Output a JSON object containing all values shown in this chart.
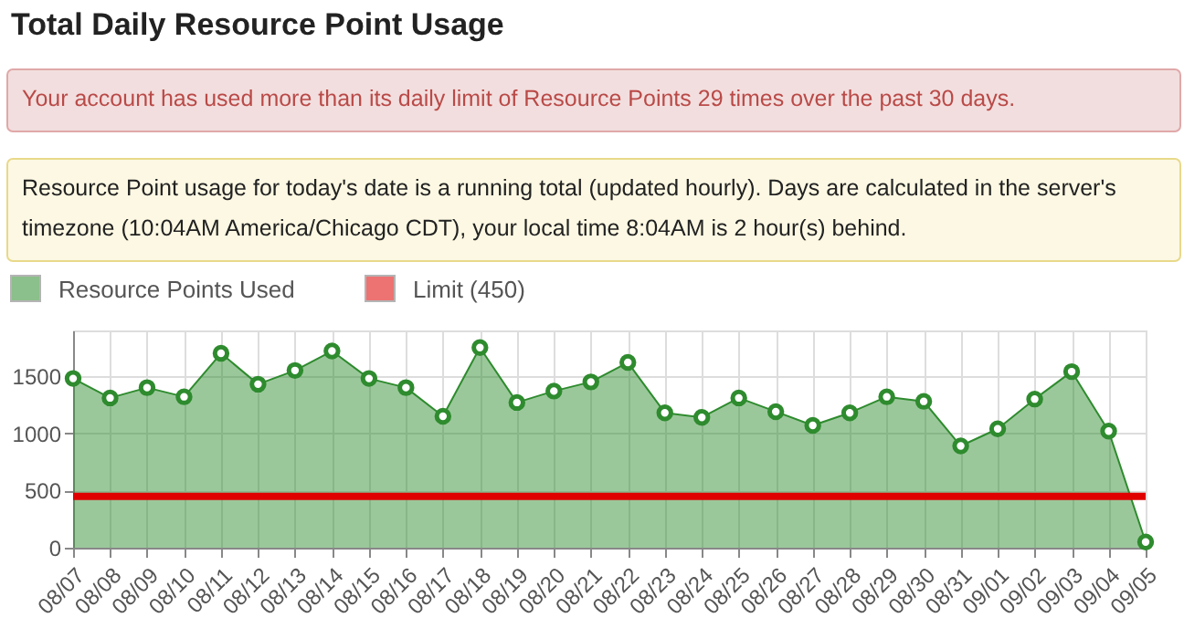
{
  "chart_data": {
    "type": "area",
    "title": "Total Daily Resource Point Usage",
    "annotations": [
      "Your account has used more than its daily limit of Resource Points 29 times over the past 30 days.",
      "Resource Point usage for today's date is a running total (updated hourly). Days are calculated in the server's timezone (10:04AM America/Chicago CDT), your local time 8:04AM is 2 hour(s) behind."
    ],
    "categories": [
      "08/07",
      "08/08",
      "08/09",
      "08/10",
      "08/11",
      "08/12",
      "08/13",
      "08/14",
      "08/15",
      "08/16",
      "08/17",
      "08/18",
      "08/19",
      "08/20",
      "08/21",
      "08/22",
      "08/23",
      "08/24",
      "08/25",
      "08/26",
      "08/27",
      "08/28",
      "08/29",
      "08/30",
      "08/31",
      "09/01",
      "09/02",
      "09/03",
      "09/04",
      "09/05"
    ],
    "series": [
      {
        "name": "Resource Points Used",
        "color": "#2e8b2e",
        "values": [
          1480,
          1310,
          1400,
          1320,
          1700,
          1430,
          1550,
          1720,
          1480,
          1400,
          1150,
          1750,
          1270,
          1370,
          1450,
          1620,
          1180,
          1140,
          1310,
          1190,
          1070,
          1180,
          1320,
          1280,
          890,
          1040,
          1300,
          1540,
          1020,
          50
        ]
      }
    ],
    "ref_lines": [
      {
        "axis": "y",
        "value": 450,
        "label": "Limit (450)",
        "color": "#e00000"
      }
    ],
    "ylim": [
      0,
      1900
    ],
    "yticks": [
      0,
      500,
      1000,
      1500
    ],
    "grid": true,
    "legend": "top left",
    "marker": "circle"
  }
}
